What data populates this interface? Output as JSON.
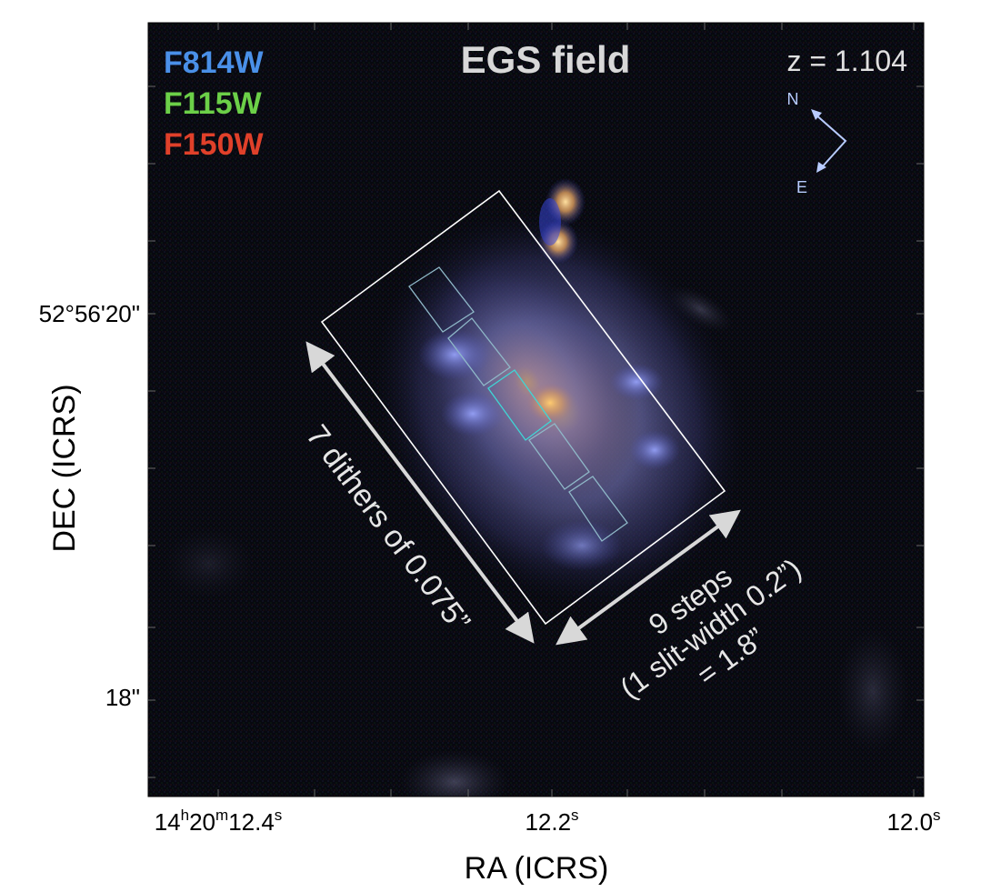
{
  "figure": {
    "title": "EGS field",
    "redshift_label": "z = 1.104",
    "filters": [
      {
        "name": "F814W",
        "color": "#4a90e8"
      },
      {
        "name": "F115W",
        "color": "#6cd048"
      },
      {
        "name": "F150W",
        "color": "#e0402a"
      }
    ],
    "compass": {
      "north": "N",
      "east": "E",
      "color": "#b8ccff"
    },
    "axes": {
      "xlabel": "RA (ICRS)",
      "ylabel": "DEC (ICRS)",
      "x_ticks": [
        {
          "h": "14",
          "m": "20",
          "s": "12.4",
          "sup_h": "h",
          "sup_m": "m",
          "sup_s": "s"
        },
        {
          "s": "12.2",
          "sup_s": "s"
        },
        {
          "s": "12.0",
          "sup_s": "s"
        }
      ],
      "y_ticks": [
        "52°56'20\"",
        "18\""
      ]
    },
    "annotations": {
      "dithers": "7 dithers of 0.075”",
      "steps_line1": "9 steps",
      "steps_line2": "(1 slit-width 0.2”)",
      "steps_line3": "= 1.8”"
    },
    "overlay_colors": {
      "footprint": "#ffffff",
      "slits": "#8fb8c8",
      "center_slit": "#3fd6d6",
      "arrows": "#d8d8d8"
    }
  }
}
